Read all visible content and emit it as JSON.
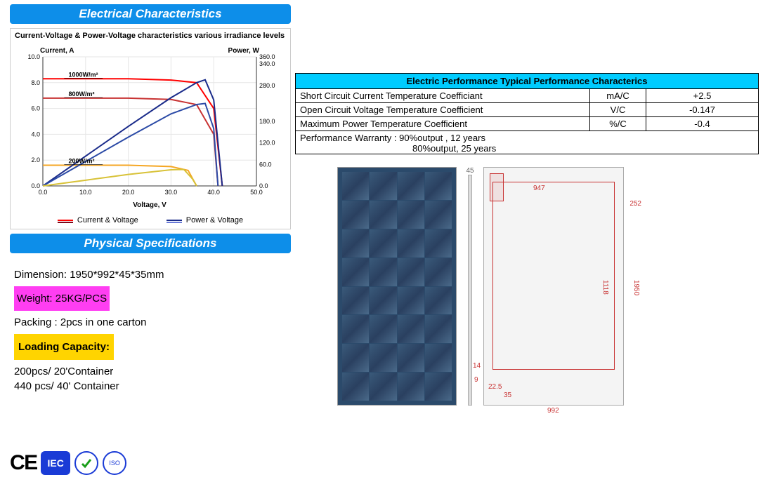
{
  "headers": {
    "electrical": "Electrical Characteristics",
    "physical": "Physical Specifications"
  },
  "chart": {
    "title": "Current-Voltage & Power-Voltage characteristics various irradiance levels",
    "axis_left_label": "Current, A",
    "axis_right_label": "Power, W",
    "axis_bottom_label": "Voltage, V",
    "x_ticks": [
      "0.0",
      "10.0",
      "20.0",
      "30.0",
      "40.0",
      "50.0"
    ],
    "y_left_ticks": [
      "0.0",
      "2.0",
      "4.0",
      "6.0",
      "8.0",
      "10.0"
    ],
    "y_right_ticks": [
      "0.0",
      "60.0",
      "120.0",
      "180.0",
      "280.0",
      "340.0",
      "360.0"
    ],
    "irradiance_labels": [
      "1000W/m²",
      "800W/m²",
      "200W/m²"
    ],
    "legend_cv": "Current & Voltage",
    "legend_pv": "Power & Voltage",
    "colors": {
      "series_1000_iv": "#ff0000",
      "series_800_iv": "#c83232",
      "series_200_iv": "#f5a623",
      "series_1000_pv": "#1a2b8a",
      "series_800_pv": "#2b4aa6",
      "series_200_pv": "#d8c238",
      "grid": "#e6e6e6",
      "axis": "#333333"
    },
    "xlim": [
      0,
      50
    ],
    "ylim_left": [
      0,
      10
    ],
    "ylim_right": [
      0,
      360
    ],
    "iv_curves": {
      "1000": [
        [
          0,
          8.3
        ],
        [
          10,
          8.3
        ],
        [
          20,
          8.3
        ],
        [
          30,
          8.2
        ],
        [
          36,
          8.0
        ],
        [
          40,
          6.0
        ],
        [
          42,
          0.0
        ]
      ],
      "800": [
        [
          0,
          6.8
        ],
        [
          10,
          6.8
        ],
        [
          20,
          6.8
        ],
        [
          30,
          6.7
        ],
        [
          36,
          6.3
        ],
        [
          40,
          4.0
        ],
        [
          41,
          0.0
        ]
      ],
      "200": [
        [
          0,
          1.6
        ],
        [
          10,
          1.6
        ],
        [
          20,
          1.6
        ],
        [
          30,
          1.5
        ],
        [
          34,
          1.2
        ],
        [
          36,
          0.0
        ]
      ]
    },
    "pv_curves": {
      "1000": [
        [
          0,
          0
        ],
        [
          10,
          83
        ],
        [
          20,
          166
        ],
        [
          30,
          246
        ],
        [
          36,
          288
        ],
        [
          38,
          296
        ],
        [
          40,
          240
        ],
        [
          42,
          0
        ]
      ],
      "800": [
        [
          0,
          0
        ],
        [
          10,
          68
        ],
        [
          20,
          136
        ],
        [
          30,
          201
        ],
        [
          36,
          227
        ],
        [
          38,
          230
        ],
        [
          40,
          160
        ],
        [
          41,
          0
        ]
      ],
      "200": [
        [
          0,
          0
        ],
        [
          10,
          16
        ],
        [
          20,
          32
        ],
        [
          30,
          45
        ],
        [
          33,
          46
        ],
        [
          35,
          20
        ],
        [
          36,
          0
        ]
      ]
    }
  },
  "perf_table": {
    "header": "Electric Performance Typical Performance Characterics",
    "rows": [
      {
        "label": "Short Circuit Current Temperature Coefficiant",
        "unit": "mA/C",
        "value": "+2.5"
      },
      {
        "label": "Open Circuit Voltage Temperature Coefficient",
        "unit": "V/C",
        "value": "-0.147"
      },
      {
        "label": "Maximum Power Temperature Coefficient",
        "unit": "%/C",
        "value": "-0.4"
      }
    ],
    "warranty_line1": "Performance Warranty :  90%output ,  12 years",
    "warranty_line2": "80%output,   25 years"
  },
  "specs": {
    "dimension_label": "Dimension:",
    "dimension_value": "1950*992*45*35mm",
    "weight_label": "Weight:",
    "weight_value": "25KG/PCS",
    "packing_label": "Packing :",
    "packing_value": "2pcs in one carton",
    "loading_label": "Loading Capacity:",
    "loading_line1": "200pcs/ 20'Container",
    "loading_line2": "440 pcs/ 40' Container"
  },
  "panel_dims": {
    "top_thickness": "45",
    "dim_947": "947",
    "dim_252": "252",
    "dim_1118": "1118",
    "dim_1950": "1950",
    "dim_9": "9",
    "dim_22_5": "22.5",
    "dim_35": "35",
    "dim_992": "992",
    "dim_14": "14"
  },
  "cert": {
    "ce": "CE",
    "iec": "IEC",
    "iso": "ISO"
  },
  "colors": {
    "header_bg": "#0d8ee9",
    "table_header_bg": "#00ccff",
    "weight_bg": "#ff3ef2",
    "loading_bg": "#ffd400",
    "dim_text": "#c83232"
  }
}
